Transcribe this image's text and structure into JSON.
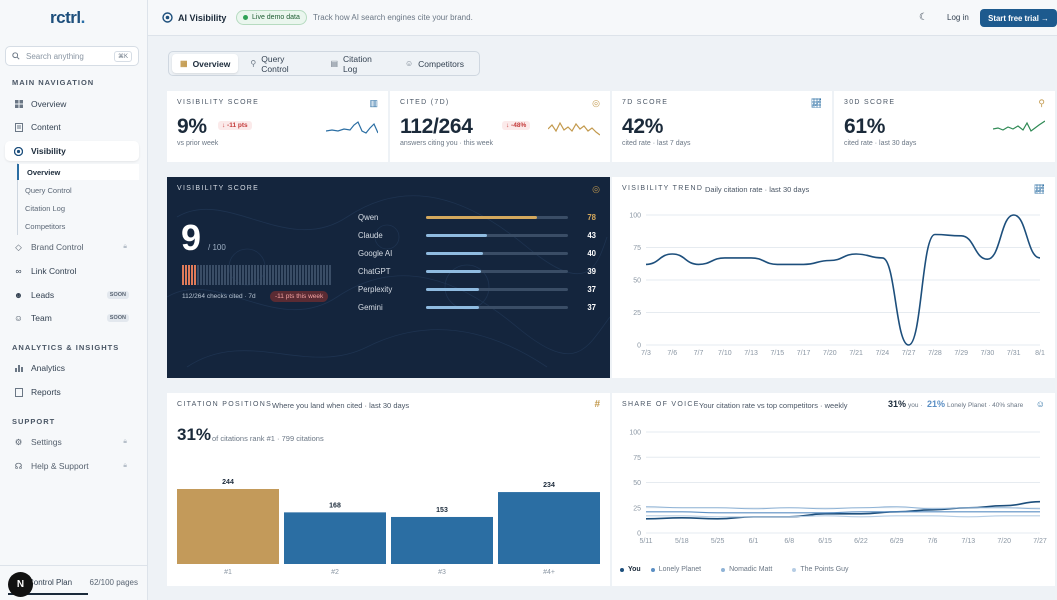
{
  "sidebar": {
    "logo": "rctrl",
    "search_placeholder": "Search anything",
    "search_kbd": "⌘K",
    "sections": [
      "MAIN NAVIGATION",
      "ANALYTICS & INSIGHTS",
      "SUPPORT"
    ],
    "main_items": [
      {
        "label": "Overview",
        "icon": "grid-icon"
      },
      {
        "label": "Content",
        "icon": "document-icon"
      },
      {
        "label": "Visibility",
        "icon": "eye-icon"
      }
    ],
    "visibility_sub": [
      "Overview",
      "Query Control",
      "Citation Log",
      "Competitors"
    ],
    "more_items": [
      {
        "label": "Brand Control",
        "badge": ""
      },
      {
        "label": "Link Control",
        "badge": ""
      },
      {
        "label": "Leads",
        "badge": "SOON"
      },
      {
        "label": "Team",
        "badge": "SOON"
      }
    ],
    "analytics_items": [
      "Analytics",
      "Reports"
    ],
    "support_items": [
      "Settings",
      "Help & Support"
    ],
    "plan_label": "Control Plan",
    "plan_count": "62/100 pages",
    "plan_avatar": "N"
  },
  "topbar": {
    "title": "AI Visibility",
    "live_badge": "Live demo data",
    "tagline": "Track how AI search engines cite your brand.",
    "login": "Log in",
    "cta": "Start free trial →"
  },
  "tabs": [
    "Overview",
    "Query Control",
    "Citation Log",
    "Competitors"
  ],
  "kpis": [
    {
      "label": "VISIBILITY SCORE",
      "value": "9%",
      "change": "↓ -11 pts",
      "sub": "vs prior week",
      "color": "#2b6ea3"
    },
    {
      "label": "CITED (7D)",
      "value": "112/264",
      "change": "↓ -48%",
      "sub": "answers citing you · this week",
      "color": "#c39a4e"
    },
    {
      "label": "7D SCORE",
      "value": "42%",
      "change": "",
      "sub": "cited rate · last 7 days",
      "color": "#2b6ea3"
    },
    {
      "label": "30D SCORE",
      "value": "61%",
      "change": "",
      "sub": "cited rate · last 30 days",
      "color": "#2f8a55"
    }
  ],
  "score_panel": {
    "label": "VISIBILITY SCORE",
    "score": "9",
    "of": "/ 100",
    "checks": "112/264 checks cited · 7d",
    "drop": "-11 pts this week",
    "engines": [
      {
        "name": "Qwen",
        "value": 78
      },
      {
        "name": "Claude",
        "value": 43
      },
      {
        "name": "Google AI",
        "value": 40
      },
      {
        "name": "ChatGPT",
        "value": 39
      },
      {
        "name": "Perplexity",
        "value": 37
      },
      {
        "name": "Gemini",
        "value": 37
      }
    ]
  },
  "trend": {
    "title": "VISIBILITY TREND",
    "subtitle": "Daily citation rate · last 30 days"
  },
  "positions": {
    "title": "CITATION POSITIONS",
    "subtitle": "Where you land when cited · last 30 days",
    "headline": "31%",
    "headline_sub": "of citations rank #1 · 799 citations"
  },
  "voice": {
    "title": "SHARE OF VOICE",
    "subtitle": "Your citation rate vs top competitors · weekly",
    "you_pct": "31%",
    "you_label": "you ·",
    "comp_pct": "21%",
    "comp_label": "Lonely Planet · 40% share"
  },
  "chart_data": [
    {
      "type": "line",
      "title": "VISIBILITY TREND",
      "x": [
        "7/3",
        "7/6",
        "7/7",
        "7/10",
        "7/13",
        "7/15",
        "7/17",
        "7/20",
        "7/21",
        "7/24",
        "7/27",
        "7/28",
        "7/29",
        "7/30",
        "7/31",
        "8/1"
      ],
      "series": [
        {
          "values": [
            62,
            70,
            62,
            67,
            67,
            62,
            62,
            65,
            70,
            67,
            0,
            85,
            84,
            66,
            100,
            67
          ]
        }
      ],
      "ylim": [
        0,
        100
      ],
      "yticks": [
        0,
        25,
        50,
        75,
        100
      ],
      "grid": true
    },
    {
      "type": "bar",
      "title": "CITATION POSITIONS",
      "categories": [
        "#1",
        "#2",
        "#3",
        "#4+"
      ],
      "values": [
        244,
        168,
        153,
        234
      ],
      "colors": [
        "#c39a5a",
        "#2b6ea3",
        "#2b6ea3",
        "#2b6ea3"
      ]
    },
    {
      "type": "line",
      "title": "SHARE OF VOICE",
      "x": [
        "5/11",
        "5/18",
        "5/25",
        "6/1",
        "6/8",
        "6/15",
        "6/22",
        "6/29",
        "7/6",
        "7/13",
        "7/20",
        "7/27"
      ],
      "series": [
        {
          "name": "You",
          "color": "#1d4f7c",
          "values": [
            14,
            15,
            14,
            16,
            16,
            19,
            19,
            21,
            23,
            25,
            27,
            31
          ]
        },
        {
          "name": "Lonely Planet",
          "color": "#5b8fc4",
          "values": [
            21,
            21,
            20,
            20,
            20,
            20,
            21,
            21,
            21,
            21,
            21,
            21
          ]
        },
        {
          "name": "Nomadic Matt",
          "color": "#8fb3d6",
          "values": [
            26,
            25,
            25,
            24,
            25,
            24,
            25,
            26,
            24,
            25,
            25,
            24
          ]
        },
        {
          "name": "The Points Guy",
          "color": "#b6cde4",
          "values": [
            17,
            17,
            16,
            16,
            16,
            17,
            16,
            17,
            17,
            16,
            17,
            17
          ]
        }
      ],
      "ylim": [
        0,
        100
      ],
      "yticks": [
        0,
        25,
        50,
        75,
        100
      ],
      "legend": "bottom-left",
      "grid": true
    }
  ]
}
